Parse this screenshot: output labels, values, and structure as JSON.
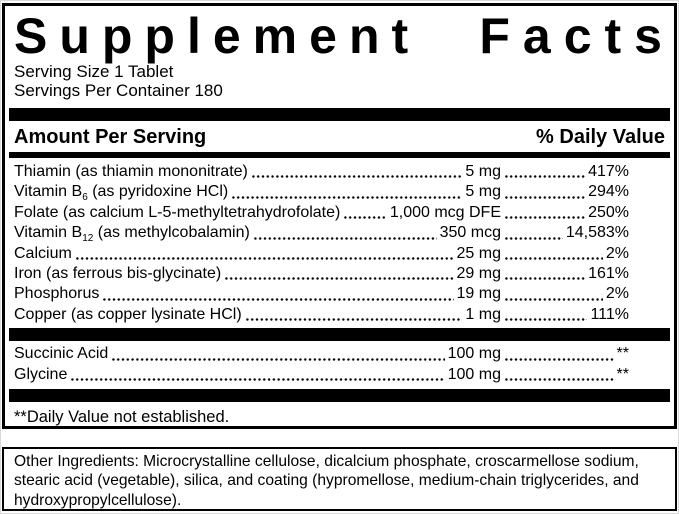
{
  "colors": {
    "ink": "#000000",
    "paper": "#ffffff"
  },
  "title": {
    "left": "Supplement",
    "right": "Facts"
  },
  "serving_info": {
    "serving_size": "Serving Size 1 Tablet",
    "servings_per_container": "Servings Per Container 180"
  },
  "table": {
    "header": {
      "amount": "Amount Per Serving",
      "daily_value": "% Daily Value"
    },
    "rows": [
      {
        "pre": "Thiamin (as thiamin mononitrate)",
        "sub": "",
        "post": "",
        "amount": "5 mg",
        "dv": "417%"
      },
      {
        "pre": "Vitamin B",
        "sub": "6",
        "post": " (as pyridoxine HCl)",
        "amount": "5 mg",
        "dv": "294%"
      },
      {
        "pre": "Folate (as calcium L-5-methyltetrahydrofolate)",
        "sub": "",
        "post": "",
        "amount": "1,000 mcg DFE",
        "dv": "250%"
      },
      {
        "pre": "Vitamin B",
        "sub": "12",
        "post": " (as methylcobalamin)",
        "amount": "350 mcg",
        "dv": "14,583%"
      },
      {
        "pre": "Calcium",
        "sub": "",
        "post": "",
        "amount": "25 mg",
        "dv": "2%"
      },
      {
        "pre": "Iron (as ferrous bis-glycinate)",
        "sub": "",
        "post": "",
        "amount": "29 mg",
        "dv": "161%"
      },
      {
        "pre": "Phosphorus",
        "sub": "",
        "post": "",
        "amount": "19 mg",
        "dv": "2%"
      },
      {
        "pre": "Copper (as copper lysinate HCl)",
        "sub": "",
        "post": "",
        "amount": "1 mg",
        "dv": "111%"
      }
    ],
    "unestablished_rows": [
      {
        "pre": "Succinic Acid",
        "amount": "100 mg",
        "dv": "**"
      },
      {
        "pre": "Glycine",
        "amount": "100 mg",
        "dv": "**"
      }
    ],
    "footnote": "**Daily Value not established."
  },
  "other_ingredients": "Other Ingredients: Microcrystalline cellulose, dicalcium phosphate, croscarmellose sodium, stearic acid (vegetable), silica, and coating (hypromellose, medium-chain triglycerides, and hydroxypropylcellulose)."
}
